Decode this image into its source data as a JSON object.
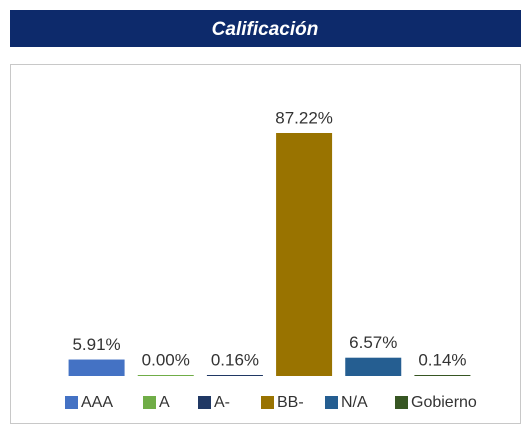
{
  "chart_data": {
    "type": "bar",
    "title": "Calificación",
    "categories": [
      "AAA",
      "A",
      "A-",
      "BB-",
      "N/A",
      "Gobierno"
    ],
    "values": [
      5.91,
      0.0,
      0.16,
      87.22,
      6.57,
      0.14
    ],
    "value_labels": [
      "5.91%",
      "0.00%",
      "0.16%",
      "87.22%",
      "6.57%",
      "0.14%"
    ],
    "colors": [
      "#4472c4",
      "#70ad47",
      "#203864",
      "#997300",
      "#255e91",
      "#375623"
    ]
  }
}
